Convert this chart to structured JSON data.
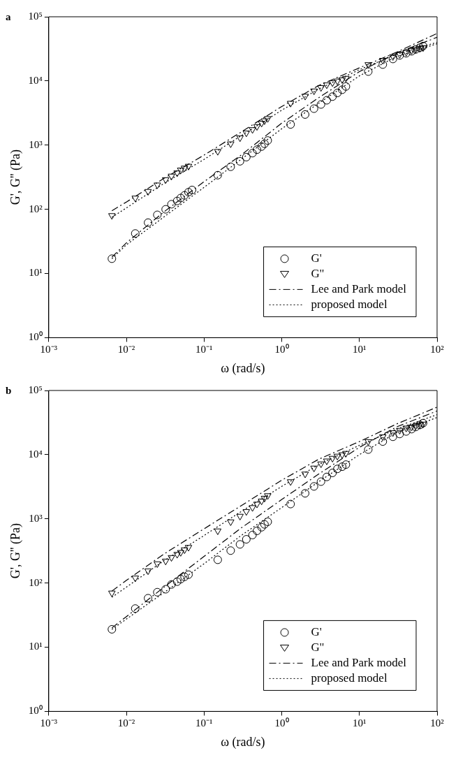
{
  "chart_data": [
    {
      "type": "scatter",
      "title": "a",
      "xlabel": "ω (rad/s)",
      "ylabel": "G', G'' (Pa)",
      "log": "xy",
      "legend": "bottom right",
      "xlim": [
        0.001,
        100
      ],
      "xticks": [
        {
          "value": 0.001,
          "label": "10⁻³"
        },
        {
          "value": 0.01,
          "label": "10⁻²"
        },
        {
          "value": 0.1,
          "label": "10⁻¹"
        },
        {
          "value": 1,
          "label": "10⁰"
        },
        {
          "value": 10,
          "label": "10¹"
        },
        {
          "value": 100,
          "label": "10²"
        }
      ],
      "ylim": [
        1,
        100000
      ],
      "yticks": [
        {
          "value": 1,
          "label": "10⁰"
        },
        {
          "value": 10,
          "label": "10¹"
        },
        {
          "value": 100,
          "label": "10²"
        },
        {
          "value": 1000,
          "label": "10³"
        },
        {
          "value": 10000,
          "label": "10⁴"
        },
        {
          "value": 100000,
          "label": "10⁵"
        }
      ],
      "series": [
        {
          "name": "G'",
          "type": "scatter",
          "marker": "circle",
          "color": "#000000",
          "x": [
            0.0065,
            0.013,
            0.019,
            0.025,
            0.032,
            0.038,
            0.045,
            0.05,
            0.056,
            0.063,
            0.07,
            0.15,
            0.22,
            0.29,
            0.35,
            0.42,
            0.48,
            0.55,
            0.6,
            0.66,
            1.3,
            2,
            2.6,
            3.2,
            3.8,
            4.5,
            5.2,
            6,
            6.7,
            13,
            20,
            27,
            33,
            40,
            47,
            53,
            60,
            66
          ],
          "values": [
            17,
            42,
            62,
            82,
            100,
            120,
            135,
            150,
            165,
            185,
            200,
            340,
            460,
            560,
            650,
            750,
            850,
            950,
            1050,
            1180,
            2100,
            3000,
            3700,
            4300,
            5000,
            5700,
            6500,
            7300,
            8200,
            14000,
            18000,
            22000,
            25000,
            27000,
            29000,
            31000,
            33000,
            35000
          ]
        },
        {
          "name": "G''",
          "type": "scatter",
          "marker": "triangle",
          "color": "#000000",
          "x": [
            0.0065,
            0.013,
            0.019,
            0.025,
            0.032,
            0.038,
            0.045,
            0.05,
            0.056,
            0.063,
            0.15,
            0.22,
            0.29,
            0.35,
            0.42,
            0.48,
            0.55,
            0.6,
            0.66,
            1.3,
            2,
            2.6,
            3.2,
            3.8,
            4.5,
            5.2,
            6,
            6.7,
            13,
            20,
            27,
            33,
            40,
            47,
            53,
            60,
            66
          ],
          "values": [
            80,
            150,
            190,
            240,
            290,
            330,
            370,
            410,
            440,
            470,
            800,
            1050,
            1300,
            1550,
            1750,
            1950,
            2200,
            2400,
            2600,
            4500,
            5800,
            7000,
            7900,
            8700,
            9400,
            10000,
            10500,
            11000,
            18000,
            21000,
            24000,
            26000,
            28000,
            30000,
            31000,
            32000,
            33000
          ]
        },
        {
          "name": "Lee and Park model",
          "type": "line",
          "line_style": "dashed",
          "color": "#000000",
          "x": [
            0.0065,
            0.01,
            0.03,
            0.1,
            0.3,
            1,
            3,
            10,
            30,
            100
          ],
          "values": [
            18,
            30,
            90,
            270,
            700,
            2200,
            5500,
            14000,
            27000,
            48000
          ]
        },
        {
          "type": "line",
          "line_style": "dashed",
          "color": "#000000",
          "x": [
            0.0065,
            0.01,
            0.03,
            0.1,
            0.3,
            1,
            3,
            10,
            30,
            100
          ],
          "values": [
            95,
            130,
            300,
            700,
            1600,
            4000,
            8500,
            16000,
            28000,
            55000
          ]
        },
        {
          "name": "proposed model",
          "type": "line",
          "line_style": "dotted",
          "color": "#000000",
          "x": [
            0.0065,
            0.01,
            0.03,
            0.1,
            0.3,
            1,
            3,
            10,
            30,
            100
          ],
          "values": [
            17,
            28,
            75,
            220,
            600,
            1800,
            4500,
            12000,
            24000,
            38000
          ]
        },
        {
          "type": "line",
          "line_style": "dotted",
          "color": "#000000",
          "x": [
            0.0065,
            0.03,
            0.1,
            0.3,
            1,
            3,
            10,
            30,
            100
          ],
          "values": [
            75,
            250,
            600,
            1400,
            3500,
            7500,
            15000,
            26000,
            40000
          ]
        }
      ]
    },
    {
      "type": "scatter",
      "title": "b",
      "xlabel": "ω (rad/s)",
      "ylabel": "G', G'' (Pa)",
      "log": "xy",
      "legend": "bottom right",
      "xlim": [
        0.001,
        100
      ],
      "xticks": [
        {
          "value": 0.001,
          "label": "10⁻³"
        },
        {
          "value": 0.01,
          "label": "10⁻²"
        },
        {
          "value": 0.1,
          "label": "10⁻¹"
        },
        {
          "value": 1,
          "label": "10⁰"
        },
        {
          "value": 10,
          "label": "10¹"
        },
        {
          "value": 100,
          "label": "10²"
        }
      ],
      "ylim": [
        1,
        100000
      ],
      "yticks": [
        {
          "value": 1,
          "label": "10⁰"
        },
        {
          "value": 10,
          "label": "10¹"
        },
        {
          "value": 100,
          "label": "10²"
        },
        {
          "value": 1000,
          "label": "10³"
        },
        {
          "value": 10000,
          "label": "10⁴"
        },
        {
          "value": 100000,
          "label": "10⁵"
        }
      ],
      "series": [
        {
          "name": "G'",
          "type": "scatter",
          "marker": "circle",
          "color": "#000000",
          "x": [
            0.0065,
            0.013,
            0.019,
            0.025,
            0.032,
            0.038,
            0.045,
            0.05,
            0.056,
            0.063,
            0.15,
            0.22,
            0.29,
            0.35,
            0.42,
            0.48,
            0.55,
            0.6,
            0.66,
            1.3,
            2,
            2.6,
            3.2,
            3.8,
            4.5,
            5.2,
            6,
            6.7,
            13,
            20,
            27,
            33,
            40,
            47,
            53,
            60,
            66
          ],
          "values": [
            19,
            40,
            58,
            72,
            80,
            95,
            105,
            115,
            125,
            135,
            230,
            320,
            400,
            480,
            560,
            650,
            740,
            820,
            900,
            1700,
            2500,
            3200,
            3800,
            4500,
            5200,
            6000,
            6500,
            7000,
            12000,
            16000,
            19000,
            21000,
            23000,
            25000,
            27000,
            29000,
            31000
          ]
        },
        {
          "name": "G''",
          "type": "scatter",
          "marker": "triangle",
          "color": "#000000",
          "x": [
            0.0065,
            0.013,
            0.019,
            0.025,
            0.032,
            0.038,
            0.045,
            0.05,
            0.056,
            0.063,
            0.15,
            0.22,
            0.29,
            0.35,
            0.42,
            0.48,
            0.55,
            0.6,
            0.66,
            1.3,
            2,
            2.6,
            3.2,
            3.8,
            4.5,
            5.2,
            6,
            6.7,
            13,
            20,
            27,
            33,
            40,
            47,
            53,
            60,
            66
          ],
          "values": [
            70,
            120,
            155,
            200,
            220,
            250,
            280,
            300,
            330,
            360,
            650,
            900,
            1100,
            1300,
            1500,
            1700,
            1900,
            2100,
            2300,
            3800,
            5000,
            6200,
            7200,
            8000,
            8800,
            9500,
            10000,
            10500,
            16000,
            19000,
            22000,
            24000,
            26000,
            27000,
            28000,
            29000,
            30000
          ]
        },
        {
          "name": "Lee and Park model",
          "type": "line",
          "line_style": "dashed",
          "color": "#000000",
          "x": [
            0.0065,
            0.01,
            0.03,
            0.1,
            0.3,
            1,
            3,
            10,
            30,
            100
          ],
          "values": [
            20,
            30,
            85,
            260,
            720,
            2000,
            5000,
            13000,
            27000,
            48000
          ]
        },
        {
          "type": "line",
          "line_style": "dashed",
          "color": "#000000",
          "x": [
            0.0065,
            0.01,
            0.03,
            0.1,
            0.3,
            1,
            3,
            10,
            30,
            100
          ],
          "values": [
            75,
            110,
            280,
            700,
            1600,
            4000,
            8500,
            16000,
            30000,
            55000
          ]
        },
        {
          "name": "proposed model",
          "type": "line",
          "line_style": "dotted",
          "color": "#000000",
          "x": [
            0.0065,
            0.03,
            0.1,
            0.3,
            1,
            3,
            10,
            30,
            100
          ],
          "values": [
            19,
            70,
            200,
            550,
            1500,
            3800,
            10000,
            22000,
            38000
          ]
        },
        {
          "type": "line",
          "line_style": "dotted",
          "color": "#000000",
          "x": [
            0.0065,
            0.03,
            0.1,
            0.3,
            1,
            3,
            10,
            30,
            100
          ],
          "values": [
            60,
            220,
            550,
            1300,
            3200,
            7000,
            14000,
            25000,
            42000
          ]
        }
      ]
    }
  ]
}
